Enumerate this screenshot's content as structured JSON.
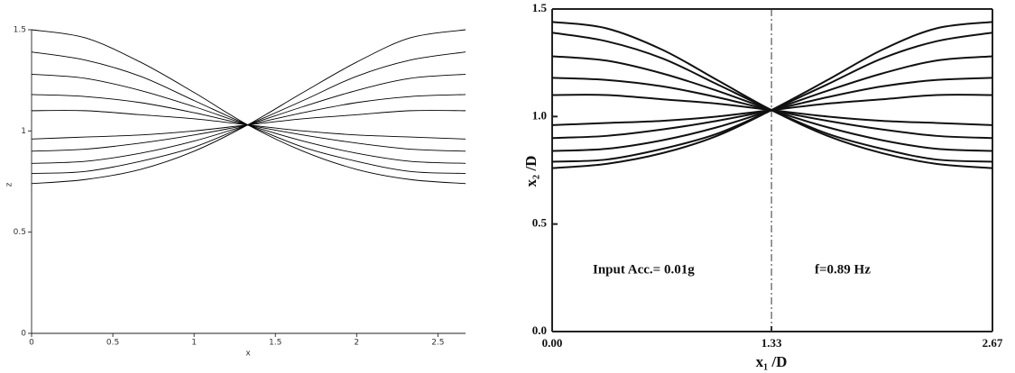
{
  "chart_data": [
    {
      "type": "line",
      "x_label": "x",
      "y_label": "z",
      "x": [
        0,
        0.33,
        0.67,
        1,
        1.33,
        1.67,
        2,
        2.33,
        2.67
      ],
      "xlim": [
        0,
        2.67
      ],
      "ylim": [
        0,
        1.5
      ],
      "xticks": [
        0,
        0.5,
        1,
        1.5,
        2,
        2.5
      ],
      "yticks": [
        0,
        0.5,
        1,
        1.5
      ],
      "color": "#000000",
      "grid": false,
      "series": [
        {
          "values": [
            1.5,
            1.46,
            1.34,
            1.19,
            1.03,
            0.9,
            0.81,
            0.76,
            0.74
          ]
        },
        {
          "values": [
            1.39,
            1.35,
            1.27,
            1.15,
            1.03,
            0.92,
            0.85,
            0.8,
            0.79
          ]
        },
        {
          "values": [
            1.28,
            1.26,
            1.2,
            1.12,
            1.03,
            0.95,
            0.89,
            0.85,
            0.84
          ]
        },
        {
          "values": [
            1.18,
            1.17,
            1.14,
            1.09,
            1.03,
            0.98,
            0.94,
            0.91,
            0.9
          ]
        },
        {
          "values": [
            1.1,
            1.1,
            1.08,
            1.06,
            1.03,
            1.0,
            0.98,
            0.97,
            0.96
          ]
        },
        {
          "values": [
            0.96,
            0.97,
            0.98,
            1.0,
            1.03,
            1.06,
            1.08,
            1.1,
            1.1
          ]
        },
        {
          "values": [
            0.9,
            0.91,
            0.94,
            0.98,
            1.03,
            1.09,
            1.14,
            1.17,
            1.18
          ]
        },
        {
          "values": [
            0.84,
            0.85,
            0.89,
            0.95,
            1.03,
            1.12,
            1.2,
            1.26,
            1.28
          ]
        },
        {
          "values": [
            0.79,
            0.8,
            0.85,
            0.92,
            1.03,
            1.15,
            1.27,
            1.35,
            1.39
          ]
        },
        {
          "values": [
            0.74,
            0.76,
            0.81,
            0.9,
            1.03,
            1.19,
            1.34,
            1.46,
            1.5
          ]
        }
      ]
    },
    {
      "type": "line",
      "x_label": "x₁ /D",
      "y_label": "x₂ /D",
      "x": [
        0,
        0.33,
        0.67,
        1,
        1.33,
        1.67,
        2,
        2.33,
        2.67
      ],
      "xlim": [
        0,
        2.67
      ],
      "ylim": [
        0,
        1.5
      ],
      "xticks": [
        {
          "value": 0,
          "label": "0.00"
        },
        {
          "value": 1.33,
          "label": "1.33"
        },
        {
          "value": 2.67,
          "label": "2.67"
        }
      ],
      "yticks": [
        {
          "value": 0,
          "label": "0.0"
        },
        {
          "value": 0.5,
          "label": "0.5"
        },
        {
          "value": 1,
          "label": "1.0"
        },
        {
          "value": 1.5,
          "label": "1.5"
        }
      ],
      "vline": 1.33,
      "annotations": [
        "Input Acc.= 0.01g",
        "f=0.89 Hz"
      ],
      "color": "#111111",
      "grid": false,
      "series": [
        {
          "values": [
            1.44,
            1.41,
            1.31,
            1.17,
            1.03,
            0.91,
            0.83,
            0.78,
            0.76
          ]
        },
        {
          "values": [
            1.39,
            1.35,
            1.27,
            1.15,
            1.03,
            0.92,
            0.85,
            0.8,
            0.79
          ]
        },
        {
          "values": [
            1.28,
            1.26,
            1.2,
            1.12,
            1.03,
            0.95,
            0.89,
            0.85,
            0.84
          ]
        },
        {
          "values": [
            1.18,
            1.17,
            1.14,
            1.09,
            1.03,
            0.98,
            0.94,
            0.91,
            0.9
          ]
        },
        {
          "values": [
            1.1,
            1.1,
            1.08,
            1.06,
            1.03,
            1.0,
            0.98,
            0.97,
            0.96
          ]
        },
        {
          "values": [
            0.96,
            0.97,
            0.98,
            1.0,
            1.03,
            1.06,
            1.08,
            1.1,
            1.1
          ]
        },
        {
          "values": [
            0.9,
            0.91,
            0.94,
            0.98,
            1.03,
            1.09,
            1.14,
            1.17,
            1.18
          ]
        },
        {
          "values": [
            0.84,
            0.85,
            0.89,
            0.95,
            1.03,
            1.12,
            1.2,
            1.26,
            1.28
          ]
        },
        {
          "values": [
            0.79,
            0.8,
            0.85,
            0.92,
            1.03,
            1.15,
            1.27,
            1.35,
            1.39
          ]
        },
        {
          "values": [
            0.76,
            0.78,
            0.83,
            0.91,
            1.03,
            1.17,
            1.31,
            1.41,
            1.44
          ]
        }
      ]
    }
  ]
}
